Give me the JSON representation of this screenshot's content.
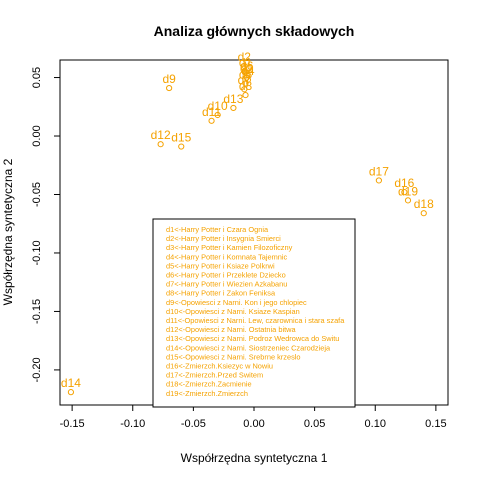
{
  "chart_data": {
    "type": "scatter",
    "title": "Analiza głównych składowych",
    "xlabel": "Współrzędna syntetyczna 1",
    "ylabel": "Współrzędna syntetyczna 2",
    "xlim": [
      -0.16,
      0.16
    ],
    "ylim": [
      -0.23,
      0.065
    ],
    "x_ticks": [
      -0.15,
      -0.1,
      -0.05,
      0.0,
      0.05,
      0.1,
      0.15
    ],
    "x_tick_labels": [
      "-0.15",
      "-0.10",
      "-0.05",
      "0.00",
      "0.05",
      "0.10",
      "0.15"
    ],
    "y_ticks": [
      -0.2,
      -0.15,
      -0.1,
      -0.05,
      0.0,
      0.05
    ],
    "y_tick_labels": [
      "-0.20",
      "-0.15",
      "-0.10",
      "-0.05",
      "0.00",
      "0.05"
    ],
    "grid": false,
    "point_color": "#f5a200",
    "points": [
      {
        "label": "d1",
        "x": -0.007,
        "y": 0.055
      },
      {
        "label": "d2",
        "x": -0.008,
        "y": 0.06
      },
      {
        "label": "d3",
        "x": -0.006,
        "y": 0.05
      },
      {
        "label": "d4",
        "x": -0.005,
        "y": 0.048
      },
      {
        "label": "d5",
        "x": -0.007,
        "y": 0.045
      },
      {
        "label": "d6",
        "x": -0.006,
        "y": 0.052
      },
      {
        "label": "d7",
        "x": -0.008,
        "y": 0.04
      },
      {
        "label": "d8",
        "x": -0.007,
        "y": 0.035
      },
      {
        "label": "d9",
        "x": -0.07,
        "y": 0.041
      },
      {
        "label": "d10",
        "x": -0.03,
        "y": 0.018
      },
      {
        "label": "d11",
        "x": -0.035,
        "y": 0.013
      },
      {
        "label": "d12",
        "x": -0.077,
        "y": -0.007
      },
      {
        "label": "d13",
        "x": -0.017,
        "y": 0.024
      },
      {
        "label": "d14",
        "x": -0.151,
        "y": -0.219
      },
      {
        "label": "d15",
        "x": -0.06,
        "y": -0.009
      },
      {
        "label": "d16",
        "x": 0.124,
        "y": -0.048
      },
      {
        "label": "d17",
        "x": 0.103,
        "y": -0.038
      },
      {
        "label": "d18",
        "x": 0.14,
        "y": -0.066
      },
      {
        "label": "d19",
        "x": 0.127,
        "y": -0.055
      }
    ],
    "legend_position": "bottom-center",
    "legend": [
      "d1<-Harry Potter i Czara Ognia",
      "d2<-Harry Potter i Insygnia Smierci",
      "d3<-Harry Potter i Kamien Filozoficzny",
      "d4<-Harry Potter i Komnata Tajemnic",
      "d5<-Harry Potter i Ksiaze Polkrwi",
      "d6<-Harry Potter i Przeklete Dziecko",
      "d7<-Harry Potter i Wiezien Azkabanu",
      "d8<-Harry Potter i Zakon Feniksa",
      "d9<-Opowiesci z Narni. Kon i jego chlopiec",
      "d10<-Opowiesci z Narni. Ksiaze Kaspian",
      "d11<-Opowiesci z Narni. Lew, czarownica i stara szafa",
      "d12<-Opowiesci z Narni. Ostatnia bitwa",
      "d13<-Opowiesci z Narni. Podroz Wedrowca do Switu",
      "d14<-Opowiesci z Narni. Siostrzeniec Czarodzieja",
      "d15<-Opowiesci z Narni. Srebrne krzeslo",
      "d16<-Zmierzch.Ksiezyc w Nowiu",
      "d17<-Zmierzch.Przed Switem",
      "d18<-Zmierzch.Zacmienie",
      "d19<-Zmierzch.Zmierzch"
    ]
  }
}
